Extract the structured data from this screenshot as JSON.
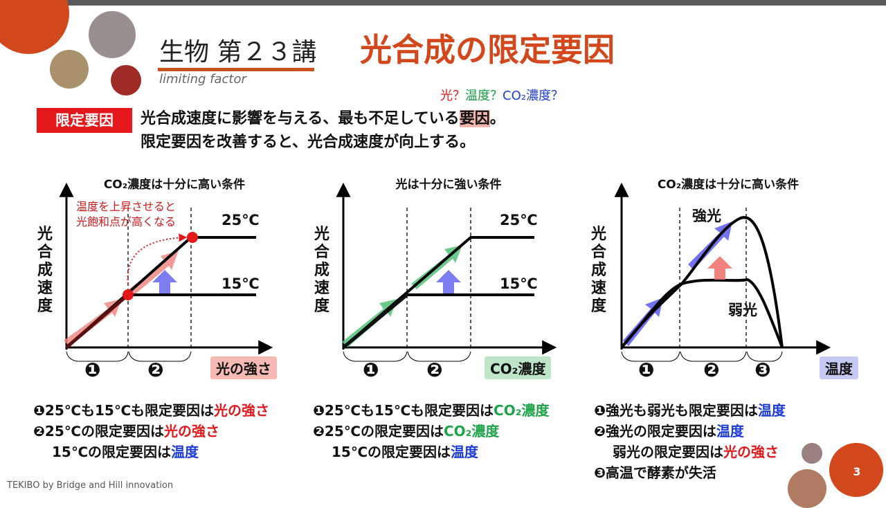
{
  "header": {
    "title_prefix": "生物 第２３講",
    "title_main": "光合成の限定要因",
    "subtitle": "limiting factor"
  },
  "question": {
    "light": "光？",
    "temp": "温度？",
    "co2": "CO₂濃度？"
  },
  "definition": {
    "badge": "限定要因",
    "line1_a": "光合成速度に影響を与える、最も不足している",
    "line1_hl": "要因",
    "line1_b": "。",
    "line2": "限定要因を改善すると、光合成速度が向上する。"
  },
  "panels": [
    {
      "title": "CO₂濃度は十分に高い条件",
      "ylabel": "光合成速度",
      "xlabel": "光の強さ",
      "curve_high": "25℃",
      "curve_low": "15℃",
      "note1": "温度を上昇させると",
      "note2": "光飽和点が高くなる",
      "regions": [
        "❶",
        "❷"
      ]
    },
    {
      "title": "光は十分に強い条件",
      "ylabel": "光合成速度",
      "xlabel": "CO₂濃度",
      "curve_high": "25℃",
      "curve_low": "15℃",
      "regions": [
        "❶",
        "❷"
      ]
    },
    {
      "title": "CO₂濃度は十分に高い条件",
      "ylabel": "光合成速度",
      "xlabel": "温度",
      "curve_high": "強光",
      "curve_low": "弱光",
      "regions": [
        "❶",
        "❷",
        "❸"
      ]
    }
  ],
  "answers": {
    "p1": {
      "l1_pre": "❶25℃も15℃も限定要因は",
      "l1_key": "光の強さ",
      "l2_pre": "❷25℃の限定要因は",
      "l2_key": "光の強さ",
      "l3_pre": "15℃の限定要因は",
      "l3_key": "温度"
    },
    "p2": {
      "l1_pre": "❶25℃も15℃も限定要因は",
      "l1_key": "CO₂濃度",
      "l2_pre": "❷25℃の限定要因は",
      "l2_key": "CO₂濃度",
      "l3_pre": "15℃の限定要因は",
      "l3_key": "温度"
    },
    "p3": {
      "l1_pre": "❶強光も弱光も限定要因は",
      "l1_key": "温度",
      "l2_pre": "❷強光の限定要因は",
      "l2_key": "温度",
      "l3_pre": "弱光の限定要因は",
      "l3_key": "光の強さ",
      "l4": "❸高温で酵素が失活"
    }
  },
  "footer": "TEKIBO  by Bridge and Hill innovation",
  "page_number": "3",
  "colors": {
    "accent_orange": "#d2471c",
    "red": "#e4171b",
    "green": "#1fa34a",
    "blue": "#1b3ad6",
    "pink_label": "#f6b9b3",
    "green_label": "#bfe5c8",
    "blue_label": "#c6c9f3"
  }
}
